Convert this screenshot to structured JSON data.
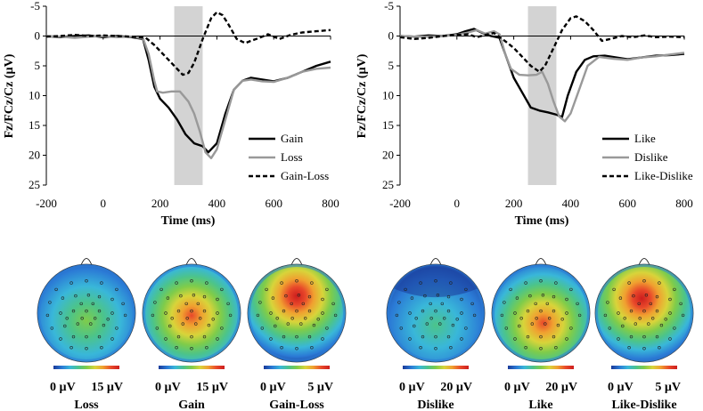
{
  "chart_data": [
    {
      "type": "line",
      "xlabel": "Time (ms)",
      "ylabel": "Fz/FCz/Cz (µV)",
      "xlim": [
        -200,
        800
      ],
      "ylim": [
        -5,
        25
      ],
      "y_inverted": true,
      "xticks": [
        "-200",
        "0",
        "200",
        "400",
        "600",
        "800"
      ],
      "yticks": [
        "-5",
        "0",
        "5",
        "10",
        "15",
        "20",
        "25"
      ],
      "shaded_window": [
        250,
        350
      ],
      "legend_position": "bottom-right",
      "series": [
        {
          "name": "Gain",
          "style": "solid",
          "color": "#000000",
          "x": [
            -200,
            -150,
            -100,
            -50,
            0,
            50,
            100,
            140,
            160,
            180,
            200,
            230,
            260,
            290,
            320,
            350,
            370,
            400,
            430,
            460,
            490,
            520,
            560,
            600,
            650,
            700,
            750,
            800
          ],
          "y": [
            0,
            0.2,
            0,
            -0.1,
            0.2,
            0,
            0.2,
            0.5,
            4,
            8.5,
            10.5,
            12,
            14,
            16.5,
            18,
            18.5,
            19.5,
            18,
            13,
            9,
            7.5,
            7,
            7.3,
            7.6,
            7,
            6,
            5,
            4.3
          ]
        },
        {
          "name": "Loss",
          "style": "solid",
          "color": "#999999",
          "x": [
            -200,
            -150,
            -100,
            -50,
            0,
            50,
            100,
            140,
            160,
            180,
            190,
            210,
            240,
            270,
            300,
            320,
            340,
            360,
            380,
            400,
            430,
            460,
            490,
            520,
            560,
            600,
            650,
            700,
            750,
            800
          ],
          "y": [
            0,
            0.1,
            0.3,
            0.1,
            0,
            0.2,
            0.1,
            0.4,
            3,
            7.5,
            9.3,
            9.5,
            9.3,
            9.3,
            11,
            13,
            16,
            19.5,
            20.5,
            19,
            14,
            9,
            7.5,
            7.3,
            7.6,
            7.7,
            7,
            6,
            5.5,
            5.3
          ]
        },
        {
          "name": "Gain-Loss",
          "style": "dashed",
          "color": "#000000",
          "x": [
            -200,
            -150,
            -100,
            -50,
            0,
            50,
            100,
            150,
            180,
            200,
            230,
            260,
            280,
            300,
            320,
            350,
            380,
            400,
            420,
            440,
            470,
            500,
            520,
            550,
            580,
            620,
            660,
            700,
            750,
            800
          ],
          "y": [
            0.1,
            0,
            -0.2,
            0,
            -0.1,
            0,
            0.1,
            0.3,
            1.5,
            2.5,
            4,
            5.5,
            6.5,
            6.2,
            4.5,
            0.5,
            -3,
            -4,
            -3.5,
            -2,
            0.5,
            1.2,
            0.8,
            0.3,
            -0.3,
            0.5,
            -0.2,
            -0.6,
            -0.8,
            -1
          ]
        }
      ]
    },
    {
      "type": "line",
      "xlabel": "Time (ms)",
      "ylabel": "Fz/FCz/Cz (µV)",
      "xlim": [
        -200,
        800
      ],
      "ylim": [
        -5,
        25
      ],
      "y_inverted": true,
      "xticks": [
        "-200",
        "0",
        "200",
        "400",
        "600",
        "800"
      ],
      "yticks": [
        "-5",
        "0",
        "5",
        "10",
        "15",
        "20",
        "25"
      ],
      "shaded_window": [
        250,
        350
      ],
      "legend_position": "bottom-right",
      "series": [
        {
          "name": "Like",
          "style": "solid",
          "color": "#000000",
          "x": [
            -200,
            -150,
            -100,
            -50,
            0,
            30,
            60,
            90,
            120,
            150,
            170,
            200,
            230,
            260,
            290,
            320,
            350,
            370,
            390,
            420,
            450,
            480,
            520,
            560,
            600,
            650,
            700,
            750,
            800
          ],
          "y": [
            0,
            0.1,
            -0.1,
            0,
            -0.3,
            -0.8,
            -1.2,
            -0.5,
            0,
            0.3,
            3,
            7,
            9.5,
            12,
            12.5,
            12.8,
            13.2,
            13.6,
            10,
            6,
            4,
            3.4,
            3.3,
            3.6,
            3.9,
            3.6,
            3.3,
            3.2,
            3
          ]
        },
        {
          "name": "Dislike",
          "style": "solid",
          "color": "#999999",
          "x": [
            -200,
            -150,
            -100,
            -50,
            0,
            40,
            70,
            100,
            130,
            150,
            170,
            190,
            220,
            250,
            280,
            300,
            320,
            340,
            360,
            380,
            400,
            430,
            460,
            500,
            550,
            600,
            650,
            700,
            750,
            800
          ],
          "y": [
            0,
            0.1,
            0.1,
            0,
            -0.2,
            -0.6,
            -1,
            -0.4,
            -0.8,
            -0.3,
            3,
            5.5,
            6.5,
            6.6,
            6.5,
            6,
            8,
            11,
            13.5,
            14.3,
            13,
            9,
            5,
            3.5,
            3.8,
            4,
            3.6,
            3.4,
            3.1,
            2.8
          ]
        },
        {
          "name": "Like-Dislike",
          "style": "dashed",
          "color": "#000000",
          "x": [
            -200,
            -150,
            -100,
            -50,
            0,
            40,
            70,
            100,
            130,
            160,
            200,
            230,
            260,
            290,
            310,
            340,
            370,
            400,
            420,
            450,
            480,
            510,
            540,
            580,
            620,
            660,
            700,
            750,
            800
          ],
          "y": [
            0.2,
            0.5,
            0.3,
            0,
            -0.2,
            -0.3,
            0.2,
            -0.2,
            -0.5,
            0.5,
            2,
            3.5,
            5,
            6,
            5,
            2,
            -1,
            -3,
            -3.3,
            -2.5,
            -1,
            0.8,
            0.5,
            0,
            0.2,
            -0.1,
            0.2,
            0.1,
            0.2
          ]
        }
      ]
    }
  ],
  "topomaps": [
    {
      "label": "Loss",
      "min_label": "0 µV",
      "max_label": "15 µV",
      "peak": 0.45,
      "peak_x": 0.0,
      "peak_y": 0.15
    },
    {
      "label": "Gain",
      "min_label": "0 µV",
      "max_label": "15 µV",
      "peak": 0.9,
      "peak_x": 0.0,
      "peak_y": 0.05
    },
    {
      "label": "Gain-Loss",
      "min_label": "0 µV",
      "max_label": "5 µV",
      "peak": 1.0,
      "peak_x": 0.0,
      "peak_y": -0.35
    },
    {
      "label": "Dislike",
      "min_label": "0 µV",
      "max_label": "20 µV",
      "peak": 0.35,
      "peak_x": 0.0,
      "peak_y": 0.25
    },
    {
      "label": "Like",
      "min_label": "0 µV",
      "max_label": "20 µV",
      "peak": 0.85,
      "peak_x": 0.05,
      "peak_y": 0.2
    },
    {
      "label": "Like-Dislike",
      "min_label": "0 µV",
      "max_label": "5 µV",
      "peak": 0.95,
      "peak_x": -0.05,
      "peak_y": -0.3
    }
  ],
  "colors": {
    "shade": "#d3d3d3",
    "colormap": [
      "#1a3a99",
      "#2b7bd6",
      "#39b7d9",
      "#4cc48a",
      "#7fcc4a",
      "#d8d43a",
      "#f0a030",
      "#e8482a",
      "#cc1e1e"
    ]
  }
}
